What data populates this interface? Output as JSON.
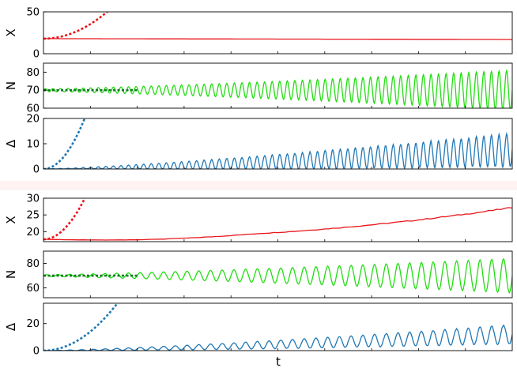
{
  "chart_data": {
    "type": "line",
    "x_label": "t",
    "groups": [
      {
        "panels": [
          {
            "id": "g1-X",
            "ylabel": "X",
            "yticks": [
              "0",
              "50"
            ],
            "ylim": [
              0,
              50
            ],
            "series": [
              {
                "style": "solid",
                "color": "#e8161b",
                "kind": "drift",
                "start": 18.0,
                "end": 17.0,
                "points": 80
              },
              {
                "style": "dashed",
                "color": "#e8161b",
                "kind": "quad",
                "start": 18.0,
                "end": 52.0,
                "tfrac": 0.14
              }
            ]
          },
          {
            "id": "g1-N",
            "ylabel": "N",
            "yticks": [
              "60",
              "70",
              "80"
            ],
            "ylim": [
              60,
              85
            ],
            "series": [
              {
                "style": "solid",
                "color": "#22dd11",
                "kind": "osc",
                "center": 70,
                "amp0": 0.8,
                "amp1": 11,
                "cycles": 62,
                "drift": 0
              },
              {
                "style": "dashed",
                "color": "#117722",
                "kind": "flat",
                "value": 70,
                "tfrac": 0.2
              }
            ]
          },
          {
            "id": "g1-D",
            "ylabel": "Δ",
            "yticks": [
              "0",
              "10",
              "20"
            ],
            "ylim": [
              0,
              20
            ],
            "series": [
              {
                "style": "solid",
                "color": "#1f77b4",
                "kind": "rectosc",
                "mean1": 7.5,
                "amp1": 6.5,
                "cycles": 62
              },
              {
                "style": "dashed",
                "color": "#1f77b4",
                "kind": "quad",
                "start": 0,
                "end": 21,
                "tfrac": 0.09
              }
            ]
          }
        ]
      },
      {
        "panels": [
          {
            "id": "g2-X",
            "ylabel": "X",
            "yticks": [
              "20",
              "25",
              "30"
            ],
            "ylim": [
              17,
              30
            ],
            "series": [
              {
                "style": "solid",
                "color": "#e8161b",
                "kind": "growth",
                "start": 17.7,
                "end": 27.2,
                "points": 120
              },
              {
                "style": "dashed",
                "color": "#e8161b",
                "kind": "quad",
                "start": 17.7,
                "end": 30.5,
                "tfrac": 0.09
              }
            ]
          },
          {
            "id": "g2-N",
            "ylabel": "N",
            "yticks": [
              "60",
              "80"
            ],
            "ylim": [
              52,
              90
            ],
            "series": [
              {
                "style": "solid",
                "color": "#22dd11",
                "kind": "osc",
                "center": 70,
                "amp0": 0.8,
                "amp1": 14,
                "cycles": 40,
                "drift": 0
              },
              {
                "style": "dashed",
                "color": "#117722",
                "kind": "flat",
                "value": 70,
                "tfrac": 0.2
              }
            ]
          },
          {
            "id": "g2-D",
            "ylabel": "Δ",
            "yticks": [
              "0",
              "20"
            ],
            "ylim": [
              0,
              35
            ],
            "series": [
              {
                "style": "solid",
                "color": "#1f77b4",
                "kind": "rectosc",
                "mean1": 12,
                "amp1": 7,
                "cycles": 40
              },
              {
                "style": "dashed",
                "color": "#1f77b4",
                "kind": "quad",
                "start": 0,
                "end": 36,
                "tfrac": 0.16
              }
            ]
          }
        ]
      }
    ]
  }
}
